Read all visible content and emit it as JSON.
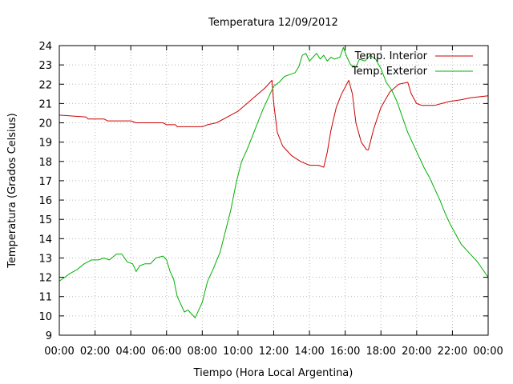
{
  "chart_data": {
    "type": "line",
    "title": "Temperatura 12/09/2012",
    "xlabel": "Tiempo (Hora Local Argentina)",
    "ylabel": "Temperatura (Grados Celsius)",
    "xlim": [
      0,
      24
    ],
    "ylim": [
      9,
      24
    ],
    "x_ticks": [
      "00:00",
      "02:00",
      "04:00",
      "06:00",
      "08:00",
      "10:00",
      "12:00",
      "14:00",
      "16:00",
      "18:00",
      "20:00",
      "22:00",
      "00:00"
    ],
    "y_ticks": [
      "9",
      "10",
      "11",
      "12",
      "13",
      "14",
      "15",
      "16",
      "17",
      "18",
      "19",
      "20",
      "21",
      "22",
      "23",
      "24"
    ],
    "grid": true,
    "legend_position": "top-right",
    "series": [
      {
        "name": "Temp. Interior",
        "color": "#cc0000",
        "points": [
          [
            0,
            20.4
          ],
          [
            1.5,
            20.3
          ],
          [
            1.6,
            20.2
          ],
          [
            2.5,
            20.2
          ],
          [
            2.7,
            20.1
          ],
          [
            4.0,
            20.1
          ],
          [
            4.3,
            20.0
          ],
          [
            5.8,
            20.0
          ],
          [
            6.0,
            19.9
          ],
          [
            6.5,
            19.9
          ],
          [
            6.6,
            19.8
          ],
          [
            7.5,
            19.8
          ],
          [
            8.0,
            19.8
          ],
          [
            8.3,
            19.9
          ],
          [
            8.8,
            20.0
          ],
          [
            9.4,
            20.3
          ],
          [
            10.0,
            20.6
          ],
          [
            10.5,
            21.0
          ],
          [
            11.0,
            21.4
          ],
          [
            11.5,
            21.8
          ],
          [
            11.9,
            22.2
          ],
          [
            12.0,
            21.0
          ],
          [
            12.2,
            19.5
          ],
          [
            12.5,
            18.8
          ],
          [
            13.0,
            18.3
          ],
          [
            13.5,
            18.0
          ],
          [
            14.0,
            17.8
          ],
          [
            14.5,
            17.8
          ],
          [
            14.8,
            17.7
          ],
          [
            15.0,
            18.5
          ],
          [
            15.2,
            19.6
          ],
          [
            15.5,
            20.8
          ],
          [
            15.8,
            21.5
          ],
          [
            16.2,
            22.2
          ],
          [
            16.4,
            21.5
          ],
          [
            16.6,
            20.0
          ],
          [
            16.9,
            19.0
          ],
          [
            17.2,
            18.6
          ],
          [
            17.3,
            18.6
          ],
          [
            17.6,
            19.7
          ],
          [
            18.0,
            20.8
          ],
          [
            18.5,
            21.6
          ],
          [
            19.0,
            22.0
          ],
          [
            19.5,
            22.1
          ],
          [
            19.7,
            21.5
          ],
          [
            20.0,
            21.0
          ],
          [
            20.3,
            20.9
          ],
          [
            21.0,
            20.9
          ],
          [
            21.4,
            21.0
          ],
          [
            21.8,
            21.1
          ],
          [
            22.5,
            21.2
          ],
          [
            23.0,
            21.3
          ],
          [
            24.0,
            21.4
          ]
        ]
      },
      {
        "name": "Temp. Exterior",
        "color": "#00b000",
        "points": [
          [
            0,
            11.8
          ],
          [
            0.3,
            12.0
          ],
          [
            0.6,
            12.2
          ],
          [
            1.0,
            12.4
          ],
          [
            1.4,
            12.7
          ],
          [
            1.8,
            12.9
          ],
          [
            2.2,
            12.9
          ],
          [
            2.5,
            13.0
          ],
          [
            2.8,
            12.9
          ],
          [
            3.2,
            13.2
          ],
          [
            3.5,
            13.2
          ],
          [
            3.8,
            12.8
          ],
          [
            4.1,
            12.7
          ],
          [
            4.3,
            12.3
          ],
          [
            4.5,
            12.6
          ],
          [
            4.8,
            12.7
          ],
          [
            5.1,
            12.7
          ],
          [
            5.4,
            13.0
          ],
          [
            5.8,
            13.1
          ],
          [
            6.0,
            12.9
          ],
          [
            6.2,
            12.3
          ],
          [
            6.4,
            11.9
          ],
          [
            6.6,
            11.0
          ],
          [
            6.8,
            10.6
          ],
          [
            7.0,
            10.2
          ],
          [
            7.2,
            10.3
          ],
          [
            7.4,
            10.1
          ],
          [
            7.6,
            9.9
          ],
          [
            7.8,
            10.3
          ],
          [
            8.0,
            10.7
          ],
          [
            8.3,
            11.8
          ],
          [
            8.6,
            12.4
          ],
          [
            9.0,
            13.3
          ],
          [
            9.3,
            14.4
          ],
          [
            9.6,
            15.5
          ],
          [
            9.9,
            16.9
          ],
          [
            10.2,
            18.0
          ],
          [
            10.5,
            18.6
          ],
          [
            10.8,
            19.3
          ],
          [
            11.1,
            20.0
          ],
          [
            11.4,
            20.7
          ],
          [
            11.7,
            21.3
          ],
          [
            12.0,
            21.9
          ],
          [
            12.3,
            22.1
          ],
          [
            12.6,
            22.4
          ],
          [
            12.9,
            22.5
          ],
          [
            13.2,
            22.6
          ],
          [
            13.4,
            22.9
          ],
          [
            13.6,
            23.5
          ],
          [
            13.8,
            23.6
          ],
          [
            14.0,
            23.2
          ],
          [
            14.2,
            23.4
          ],
          [
            14.4,
            23.6
          ],
          [
            14.6,
            23.3
          ],
          [
            14.8,
            23.5
          ],
          [
            15.0,
            23.2
          ],
          [
            15.2,
            23.4
          ],
          [
            15.4,
            23.3
          ],
          [
            15.7,
            23.4
          ],
          [
            15.9,
            23.9
          ],
          [
            16.1,
            23.4
          ],
          [
            16.3,
            23.0
          ],
          [
            16.6,
            22.9
          ],
          [
            16.8,
            23.3
          ],
          [
            17.1,
            23.2
          ],
          [
            17.4,
            23.5
          ],
          [
            17.7,
            23.3
          ],
          [
            18.0,
            22.8
          ],
          [
            18.3,
            22.1
          ],
          [
            18.6,
            21.7
          ],
          [
            18.9,
            21.1
          ],
          [
            19.2,
            20.3
          ],
          [
            19.5,
            19.5
          ],
          [
            19.8,
            18.9
          ],
          [
            20.1,
            18.3
          ],
          [
            20.4,
            17.7
          ],
          [
            20.7,
            17.2
          ],
          [
            21.0,
            16.6
          ],
          [
            21.3,
            16.0
          ],
          [
            21.6,
            15.3
          ],
          [
            21.9,
            14.7
          ],
          [
            22.2,
            14.2
          ],
          [
            22.5,
            13.7
          ],
          [
            22.8,
            13.4
          ],
          [
            23.1,
            13.1
          ],
          [
            23.4,
            12.8
          ],
          [
            23.7,
            12.4
          ],
          [
            24.0,
            12.0
          ]
        ]
      }
    ]
  }
}
